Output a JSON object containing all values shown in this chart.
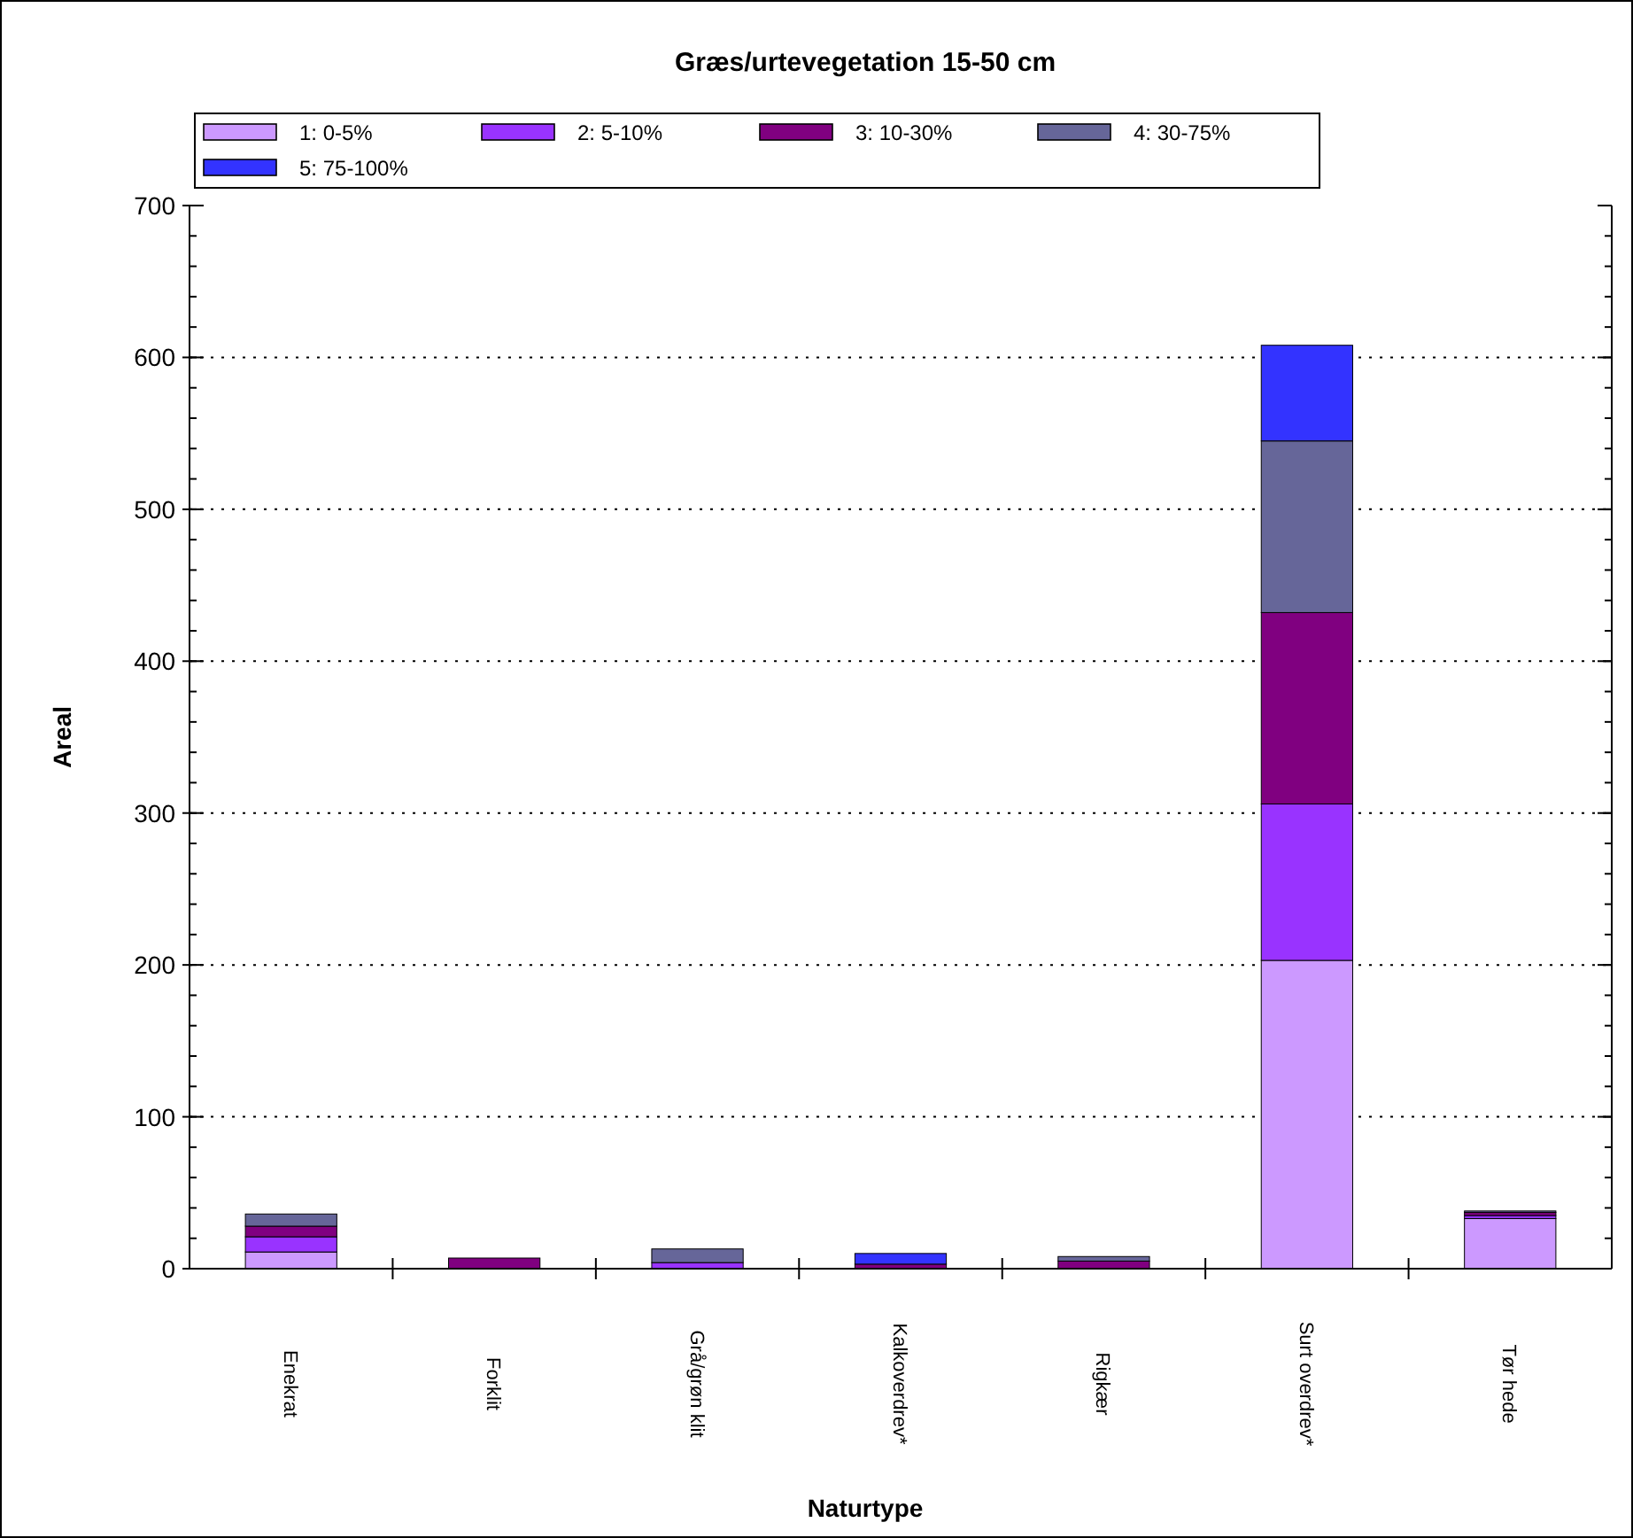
{
  "chart_data": {
    "type": "bar",
    "title": "Græs/urtevegetation 15-50 cm",
    "xlabel": "Naturtype",
    "ylabel": "Areal",
    "categories": [
      "Enekrat",
      "Forklit",
      "Grå/grøn klit",
      "Kalkoverdrev*",
      "Rigkær",
      "Surt overdrev*",
      "Tør hede"
    ],
    "series": [
      {
        "name": "1: 0-5%",
        "color": "#cc99ff",
        "values": [
          11,
          0,
          0,
          0,
          0,
          203,
          33
        ]
      },
      {
        "name": "2: 5-10%",
        "color": "#9933ff",
        "values": [
          10,
          0,
          4,
          0,
          0,
          103,
          2
        ]
      },
      {
        "name": "3: 10-30%",
        "color": "#800080",
        "values": [
          7,
          7,
          0,
          3,
          5,
          126,
          2
        ]
      },
      {
        "name": "4: 30-75%",
        "color": "#666699",
        "values": [
          8,
          0,
          9,
          0,
          3,
          113,
          1
        ]
      },
      {
        "name": "5: 75-100%",
        "color": "#3333ff",
        "values": [
          0,
          0,
          0,
          7,
          0,
          63,
          0
        ]
      }
    ],
    "stacked": true,
    "ylim": [
      0,
      700
    ],
    "yticks": [
      0,
      100,
      200,
      300,
      400,
      500,
      600,
      700
    ],
    "grid": "y",
    "legend": "top"
  }
}
